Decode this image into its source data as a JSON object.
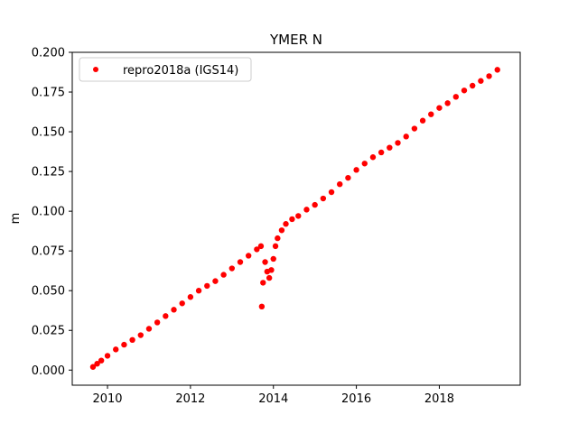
{
  "chart_data": {
    "type": "scatter",
    "title": "YMER N",
    "xlabel": "",
    "ylabel": "m",
    "xlim": [
      2009.15,
      2019.95
    ],
    "ylim": [
      -0.0095,
      0.2
    ],
    "xticks": [
      2010,
      2012,
      2014,
      2016,
      2018
    ],
    "xtick_labels": [
      "2010",
      "2012",
      "2014",
      "2016",
      "2018"
    ],
    "yticks": [
      0.0,
      0.025,
      0.05,
      0.075,
      0.1,
      0.125,
      0.15,
      0.175,
      0.2
    ],
    "ytick_labels": [
      "0.000",
      "0.025",
      "0.050",
      "0.075",
      "0.100",
      "0.125",
      "0.150",
      "0.175",
      "0.200"
    ],
    "grid": false,
    "legend_position": "top-left",
    "series": [
      {
        "name": "repro2018a (IGS14)",
        "color": "#ff0000",
        "marker": "circle",
        "x": [
          2009.65,
          2009.75,
          2009.85,
          2010.0,
          2010.2,
          2010.4,
          2010.6,
          2010.8,
          2011.0,
          2011.2,
          2011.4,
          2011.6,
          2011.8,
          2012.0,
          2012.2,
          2012.4,
          2012.6,
          2012.8,
          2013.0,
          2013.2,
          2013.4,
          2013.6,
          2013.7,
          2013.72,
          2013.75,
          2013.8,
          2013.85,
          2013.9,
          2013.95,
          2014.0,
          2014.05,
          2014.1,
          2014.2,
          2014.3,
          2014.45,
          2014.6,
          2014.8,
          2015.0,
          2015.2,
          2015.4,
          2015.6,
          2015.8,
          2016.0,
          2016.2,
          2016.4,
          2016.6,
          2016.8,
          2017.0,
          2017.2,
          2017.4,
          2017.6,
          2017.8,
          2018.0,
          2018.2,
          2018.4,
          2018.6,
          2018.8,
          2019.0,
          2019.2,
          2019.4
        ],
        "y": [
          0.002,
          0.004,
          0.006,
          0.009,
          0.013,
          0.016,
          0.019,
          0.022,
          0.026,
          0.03,
          0.034,
          0.038,
          0.042,
          0.046,
          0.05,
          0.053,
          0.056,
          0.06,
          0.064,
          0.068,
          0.072,
          0.076,
          0.078,
          0.04,
          0.055,
          0.068,
          0.062,
          0.058,
          0.063,
          0.07,
          0.078,
          0.083,
          0.088,
          0.092,
          0.095,
          0.097,
          0.101,
          0.104,
          0.108,
          0.112,
          0.117,
          0.121,
          0.126,
          0.13,
          0.134,
          0.137,
          0.14,
          0.143,
          0.147,
          0.152,
          0.157,
          0.161,
          0.165,
          0.168,
          0.172,
          0.176,
          0.179,
          0.182,
          0.185,
          0.189
        ]
      }
    ]
  }
}
